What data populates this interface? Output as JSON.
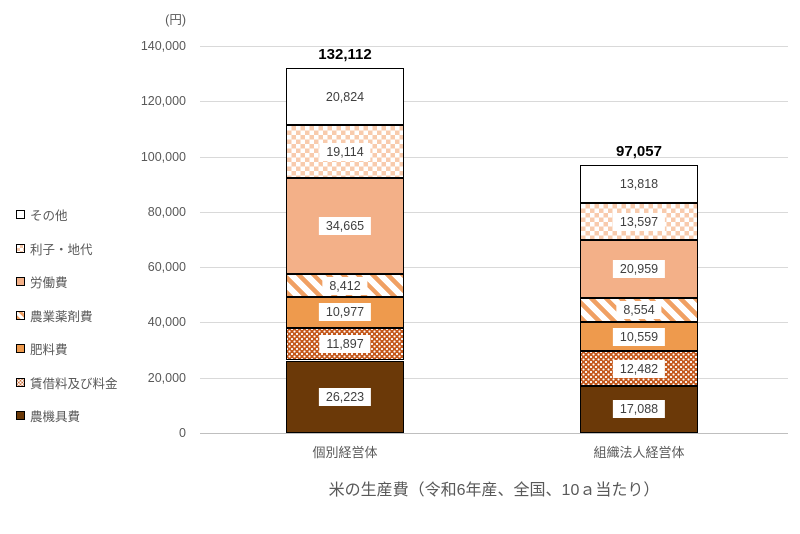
{
  "chart_data": {
    "type": "bar",
    "stacked": true,
    "title": "米の生産費（令和6年産、全国、10ａ当たり）",
    "unit_label": "(円)",
    "categories": [
      "個別経営体",
      "組織法人経営体"
    ],
    "totals": [
      132112,
      97057
    ],
    "totals_display": [
      "132,112",
      "97,057"
    ],
    "series": [
      {
        "name": "その他",
        "pattern": "white",
        "color": "#FFFFFF",
        "values": [
          20824,
          13818
        ]
      },
      {
        "name": "利子・地代",
        "pattern": "checker",
        "color": "#F8CBAD",
        "values": [
          19114,
          13597
        ]
      },
      {
        "name": "労働費",
        "pattern": "solid",
        "color": "#F3B088",
        "values": [
          34665,
          20959
        ]
      },
      {
        "name": "農業薬剤費",
        "pattern": "diagonal",
        "color": "#F0A063",
        "values": [
          8412,
          8554
        ]
      },
      {
        "name": "肥料費",
        "pattern": "solid",
        "color": "#EE9A4D",
        "values": [
          10977,
          10559
        ]
      },
      {
        "name": "賃借料及び料金",
        "pattern": "dots",
        "color": "#C4571A",
        "values": [
          11897,
          12482
        ]
      },
      {
        "name": "農機具費",
        "pattern": "solid",
        "color": "#6B3908",
        "values": [
          26223,
          17088
        ]
      }
    ],
    "stack_order": "series listed top-of-bar first; legend top-to-bottom matches",
    "ylim": [
      0,
      140000
    ],
    "y_tick_interval": 20000,
    "y_tick_labels": [
      "0",
      "20,000",
      "40,000",
      "60,000",
      "80,000",
      "100,000",
      "120,000",
      "140,000"
    ],
    "grid": true,
    "legend_position": "left",
    "colors": {
      "gridline": "#D9D9D9",
      "axis_line": "#BFBFBF",
      "axis_text": "#595959",
      "data_label_text": "#3F3F3F",
      "total_text": "#000000",
      "segment_border": "#000000"
    }
  }
}
